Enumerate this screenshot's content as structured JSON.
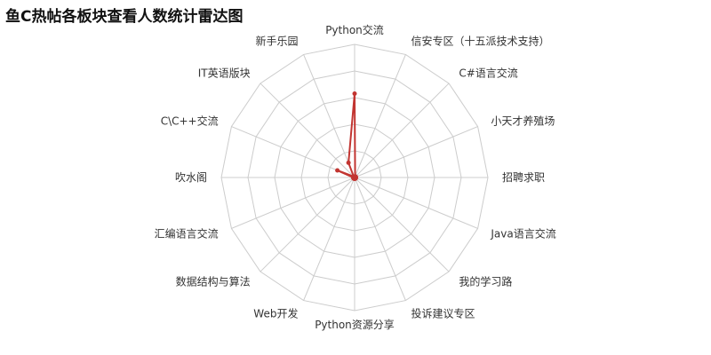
{
  "chart_data": {
    "type": "radar",
    "title": "鱼C热帖各板块查看人数统计雷达图",
    "indicators": [
      "Python交流",
      "信安专区（十五派技术支持）",
      "C#语言交流",
      "小天才养殖场",
      "招聘求职",
      "Java语言交流",
      "我的学习路",
      "投诉建议专区",
      "Python资源分享",
      "Web开发",
      "数据结构与算法",
      "汇编语言交流",
      "吹水阁",
      "C\\C++交流",
      "IT英语版块",
      "新手乐园"
    ],
    "values_fraction_of_max": [
      0.63,
      0.01,
      0.01,
      0.01,
      0.01,
      0.01,
      0.01,
      0.01,
      0.01,
      0.01,
      0.01,
      0.01,
      0.01,
      0.14,
      0.01,
      0.12
    ],
    "rings": 5,
    "series_color": "#c23531",
    "grid_color": "#cccccc",
    "legend": "none"
  }
}
